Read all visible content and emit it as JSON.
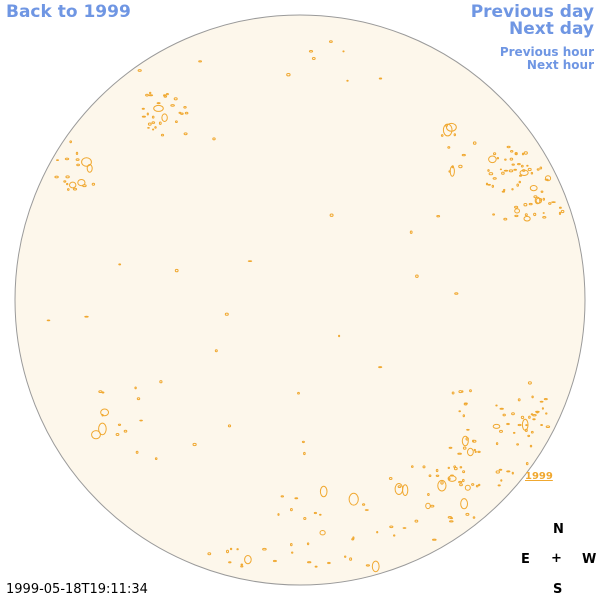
{
  "nav": {
    "back": "Back to 1999",
    "prev_day": "Previous day",
    "next_day": "Next day",
    "prev_hour": "Previous hour",
    "next_hour": "Next hour"
  },
  "disk": {
    "fill_color": "#fdf7eb",
    "outline_color": "#9a9a9a",
    "contour_color": "#f0a830"
  },
  "year_link": "1999",
  "compass": {
    "north": "N",
    "east": "E",
    "center": "+",
    "west": "W",
    "south": "S"
  },
  "timestamp": "1999-05-18T19:11:34"
}
